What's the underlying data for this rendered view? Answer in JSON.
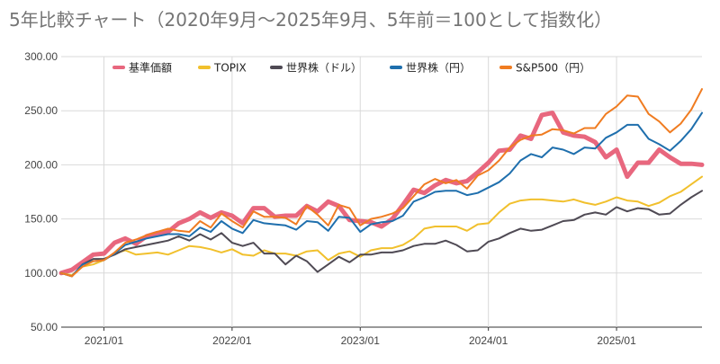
{
  "chart_data": {
    "type": "line",
    "title": "5年比較チャート（2020年9月〜2025年9月、5年前＝100として指数化）",
    "xlabel": "",
    "ylabel": "",
    "ylim": [
      50,
      300
    ],
    "yticks": [
      "300.00",
      "250.00",
      "200.00",
      "150.00",
      "100.00",
      "50.00"
    ],
    "xticks": [
      "2021/01",
      "2022/01",
      "2023/01",
      "2024/01",
      "2025/01"
    ],
    "grid": true,
    "legend_position": "top",
    "x": [
      "2020/09",
      "2020/10",
      "2020/11",
      "2020/12",
      "2021/01",
      "2021/02",
      "2021/03",
      "2021/04",
      "2021/05",
      "2021/06",
      "2021/07",
      "2021/08",
      "2021/09",
      "2021/10",
      "2021/11",
      "2021/12",
      "2022/01",
      "2022/02",
      "2022/03",
      "2022/04",
      "2022/05",
      "2022/06",
      "2022/07",
      "2022/08",
      "2022/09",
      "2022/10",
      "2022/11",
      "2022/12",
      "2023/01",
      "2023/02",
      "2023/03",
      "2023/04",
      "2023/05",
      "2023/06",
      "2023/07",
      "2023/08",
      "2023/09",
      "2023/10",
      "2023/11",
      "2023/12",
      "2024/01",
      "2024/02",
      "2024/03",
      "2024/04",
      "2024/05",
      "2024/06",
      "2024/07",
      "2024/08",
      "2024/09",
      "2024/10",
      "2024/11",
      "2024/12",
      "2025/01",
      "2025/02",
      "2025/03",
      "2025/04",
      "2025/05",
      "2025/06",
      "2025/07",
      "2025/08",
      "2025/09"
    ],
    "series": [
      {
        "name": "基準価額",
        "color": "#e8677e",
        "width": 5,
        "values": [
          100,
          103,
          110,
          117,
          118,
          128,
          132,
          127,
          134,
          137,
          138,
          146,
          150,
          156,
          151,
          156,
          153,
          146,
          160,
          160,
          152,
          153,
          153,
          162,
          157,
          166,
          162,
          149,
          148,
          147,
          143,
          150,
          163,
          177,
          174,
          181,
          186,
          183,
          185,
          193,
          202,
          213,
          214,
          227,
          224,
          246,
          248,
          230,
          227,
          226,
          221,
          207,
          214,
          189,
          202,
          202,
          214,
          207,
          201,
          201,
          200
        ]
      },
      {
        "name": "TOPIX",
        "color": "#f1c02d",
        "width": 2,
        "values": [
          100,
          98,
          106,
          108,
          112,
          118,
          121,
          117,
          118,
          119,
          117,
          121,
          125,
          124,
          122,
          119,
          122,
          117,
          116,
          121,
          118,
          118,
          116,
          120,
          121,
          112,
          118,
          120,
          115,
          121,
          123,
          123,
          126,
          132,
          141,
          143,
          143,
          143,
          139,
          145,
          146,
          156,
          164,
          167,
          168,
          168,
          167,
          166,
          168,
          165,
          163,
          166,
          170,
          167,
          166,
          162,
          165,
          171,
          175,
          182,
          189
        ]
      },
      {
        "name": "世界株（ドル）",
        "color": "#4f4a54",
        "width": 2,
        "values": [
          100,
          97,
          108,
          113,
          113,
          117,
          122,
          124,
          126,
          128,
          130,
          134,
          130,
          136,
          131,
          137,
          128,
          125,
          128,
          118,
          118,
          108,
          116,
          111,
          101,
          108,
          115,
          110,
          117,
          117,
          119,
          119,
          121,
          125,
          127,
          127,
          130,
          126,
          120,
          121,
          129,
          132,
          137,
          141,
          139,
          140,
          144,
          148,
          149,
          154,
          156,
          154,
          161,
          157,
          160,
          159,
          154,
          155,
          163,
          170,
          176
        ]
      },
      {
        "name": "世界株（円）",
        "color": "#1f6fad",
        "width": 2,
        "values": [
          100,
          97,
          108,
          111,
          112,
          118,
          126,
          129,
          132,
          134,
          136,
          136,
          134,
          142,
          138,
          148,
          141,
          137,
          149,
          146,
          145,
          144,
          140,
          148,
          147,
          139,
          152,
          151,
          138,
          145,
          147,
          148,
          153,
          166,
          170,
          175,
          176,
          176,
          172,
          174,
          179,
          184,
          192,
          204,
          210,
          207,
          216,
          214,
          210,
          216,
          215,
          225,
          230,
          237,
          237,
          224,
          219,
          213,
          222,
          233,
          248
        ]
      },
      {
        "name": "S&P500（円）",
        "color": "#f07c21",
        "width": 2,
        "values": [
          100,
          97,
          106,
          111,
          112,
          119,
          128,
          131,
          135,
          138,
          141,
          139,
          138,
          148,
          142,
          155,
          148,
          142,
          157,
          152,
          152,
          151,
          145,
          162,
          154,
          144,
          163,
          160,
          144,
          150,
          152,
          155,
          160,
          171,
          182,
          187,
          183,
          186,
          178,
          190,
          195,
          204,
          216,
          223,
          227,
          228,
          233,
          232,
          229,
          234,
          234,
          247,
          254,
          264,
          263,
          247,
          240,
          230,
          238,
          251,
          270
        ]
      }
    ]
  }
}
